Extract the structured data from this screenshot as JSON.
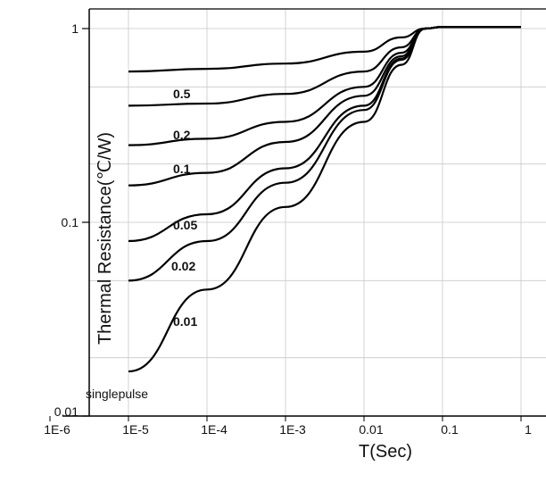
{
  "chart_data": {
    "type": "line",
    "xlabel": "T(Sec)",
    "ylabel": "Thermal Resistance(℃/W)",
    "xscale": "log",
    "yscale": "log",
    "xlim": [
      1e-06,
      1
    ],
    "ylim": [
      0.01,
      1
    ],
    "grid": true,
    "x_tick_labels": [
      "1E-6",
      "1E-5",
      "1E-4",
      "1E-3",
      "0.01",
      "0.1",
      "1"
    ],
    "y_tick_labels": [
      "0.01",
      "0.1",
      "1"
    ],
    "x_ticks": [
      1e-06,
      1e-05,
      0.0001,
      0.001,
      0.01,
      0.1,
      1
    ],
    "y_ticks": [
      0.01,
      0.1,
      1
    ],
    "series": [
      {
        "name": "0.5",
        "x": [
          1e-05,
          0.0001,
          0.001,
          0.01,
          0.03,
          0.06,
          0.1,
          1
        ],
        "y": [
          0.6,
          0.62,
          0.66,
          0.76,
          0.9,
          1.0,
          1.02,
          1.02
        ]
      },
      {
        "name": "0.2",
        "x": [
          1e-05,
          0.0001,
          0.001,
          0.01,
          0.03,
          0.06,
          0.1,
          1
        ],
        "y": [
          0.4,
          0.41,
          0.46,
          0.6,
          0.8,
          1.0,
          1.02,
          1.02
        ]
      },
      {
        "name": "0.1",
        "x": [
          1e-05,
          0.0001,
          0.001,
          0.01,
          0.03,
          0.06,
          0.1,
          1
        ],
        "y": [
          0.25,
          0.27,
          0.33,
          0.5,
          0.75,
          1.0,
          1.02,
          1.02
        ]
      },
      {
        "name": "0.05",
        "x": [
          1e-05,
          0.0001,
          0.001,
          0.01,
          0.03,
          0.06,
          0.1,
          1
        ],
        "y": [
          0.155,
          0.18,
          0.26,
          0.45,
          0.72,
          1.0,
          1.02,
          1.02
        ]
      },
      {
        "name": "0.02",
        "x": [
          1e-05,
          0.0001,
          0.001,
          0.01,
          0.03,
          0.06,
          0.1,
          1
        ],
        "y": [
          0.08,
          0.11,
          0.19,
          0.4,
          0.7,
          1.0,
          1.02,
          1.02
        ]
      },
      {
        "name": "0.01",
        "x": [
          1e-05,
          0.0001,
          0.001,
          0.01,
          0.03,
          0.06,
          0.1,
          1
        ],
        "y": [
          0.05,
          0.08,
          0.16,
          0.38,
          0.69,
          1.0,
          1.02,
          1.02
        ]
      },
      {
        "name": "singlepulse",
        "x": [
          1e-05,
          0.0001,
          0.001,
          0.01,
          0.03,
          0.06,
          0.1,
          1
        ],
        "y": [
          0.017,
          0.045,
          0.12,
          0.33,
          0.65,
          1.0,
          1.02,
          1.02
        ]
      }
    ]
  }
}
